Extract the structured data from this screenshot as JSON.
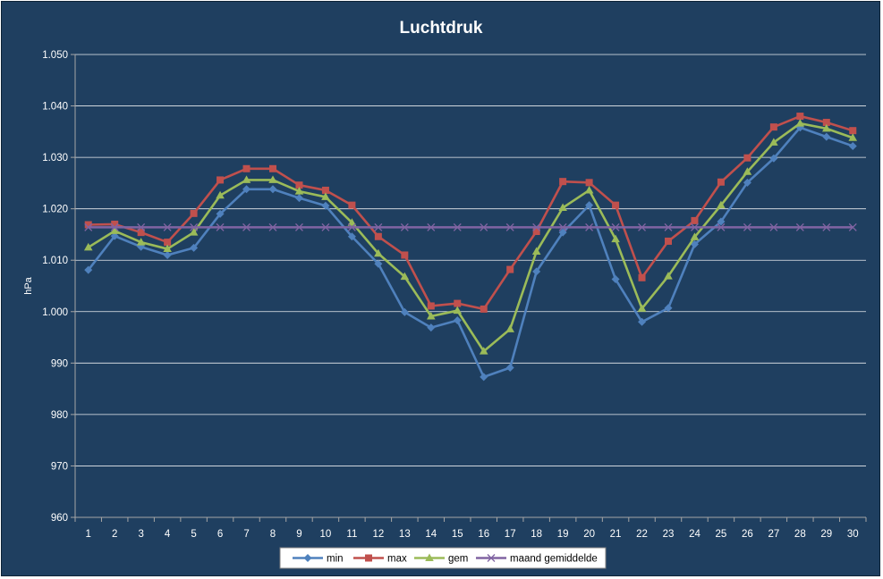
{
  "chart_data": {
    "type": "line",
    "title": "Luchtdruk",
    "xlabel": "",
    "ylabel": "hPa",
    "ylim": [
      960,
      1050
    ],
    "y_ticks": [
      960,
      970,
      980,
      990,
      1000,
      1010,
      1020,
      1030,
      1040,
      1050
    ],
    "y_tick_labels": [
      "960",
      "970",
      "980",
      "990",
      "1.000",
      "1.010",
      "1.020",
      "1.030",
      "1.040",
      "1.050"
    ],
    "categories": [
      "1",
      "2",
      "3",
      "4",
      "5",
      "6",
      "7",
      "8",
      "9",
      "10",
      "11",
      "12",
      "13",
      "14",
      "15",
      "16",
      "17",
      "18",
      "19",
      "20",
      "21",
      "22",
      "23",
      "24",
      "25",
      "26",
      "27",
      "28",
      "29",
      "30"
    ],
    "grid": "horizontal",
    "legend_position": "bottom",
    "series": [
      {
        "name": "min",
        "color": "#4f81bd",
        "marker": "diamond",
        "values": [
          1008.1,
          1014.7,
          1012.6,
          1011.0,
          1012.4,
          1019.0,
          1023.8,
          1023.8,
          1022.1,
          1020.6,
          1014.6,
          1009.3,
          999.9,
          996.9,
          998.3,
          987.3,
          989.1,
          1007.8,
          1015.4,
          1020.7,
          1006.3,
          998.0,
          1000.7,
          1013.1,
          1017.5,
          1025.1,
          1029.8,
          1035.8,
          1034.0,
          1032.2
        ]
      },
      {
        "name": "max",
        "color": "#c0504d",
        "marker": "square",
        "values": [
          1016.9,
          1017.0,
          1015.4,
          1013.5,
          1019.1,
          1025.6,
          1027.8,
          1027.8,
          1024.6,
          1023.6,
          1020.7,
          1014.6,
          1011.0,
          1001.1,
          1001.6,
          1000.5,
          1008.2,
          1015.6,
          1025.3,
          1025.1,
          1020.7,
          1006.6,
          1013.7,
          1017.7,
          1025.2,
          1029.9,
          1035.9,
          1038.0,
          1036.8,
          1035.2
        ]
      },
      {
        "name": "gem",
        "color": "#9bbb59",
        "marker": "triangle",
        "values": [
          1012.5,
          1015.7,
          1013.5,
          1012.2,
          1015.4,
          1022.6,
          1025.6,
          1025.6,
          1023.4,
          1022.3,
          1017.3,
          1011.3,
          1006.8,
          999.1,
          1000.2,
          992.3,
          996.6,
          1011.7,
          1020.2,
          1023.6,
          1014.1,
          1000.6,
          1006.9,
          1014.5,
          1020.7,
          1027.2,
          1032.9,
          1036.6,
          1035.6,
          1033.8
        ]
      },
      {
        "name": "maand gemiddelde",
        "color": "#8064a2",
        "marker": "x",
        "values": [
          1016.4,
          1016.4,
          1016.4,
          1016.4,
          1016.4,
          1016.4,
          1016.4,
          1016.4,
          1016.4,
          1016.4,
          1016.4,
          1016.4,
          1016.4,
          1016.4,
          1016.4,
          1016.4,
          1016.4,
          1016.4,
          1016.4,
          1016.4,
          1016.4,
          1016.4,
          1016.4,
          1016.4,
          1016.4,
          1016.4,
          1016.4,
          1016.4,
          1016.4,
          1016.4
        ]
      }
    ]
  },
  "colors": {
    "background": "#1f3f60",
    "plot_border": "#a6a6a6",
    "gridline": "#ffffff",
    "text": "#ffffff",
    "legend_background": "#ffffff"
  }
}
